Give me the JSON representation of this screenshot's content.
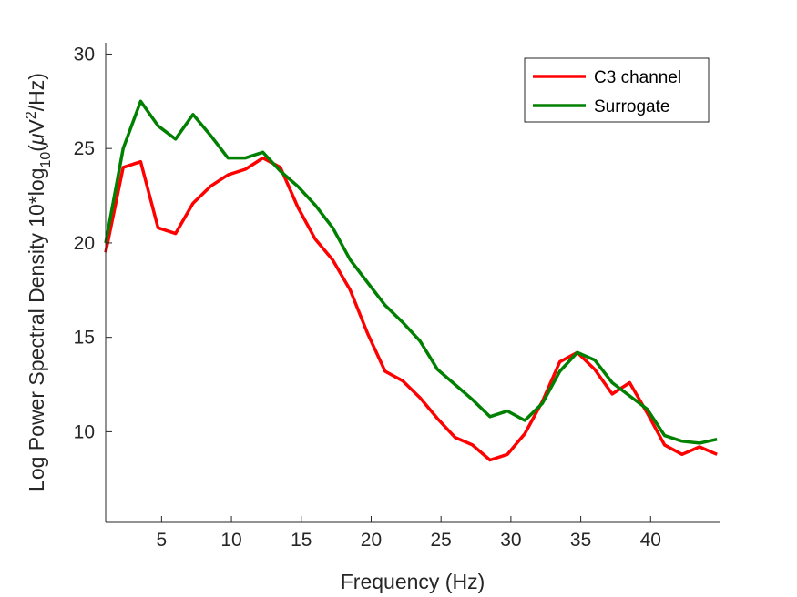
{
  "chart_data": {
    "type": "line",
    "xlabel": "Frequency (Hz)",
    "ylabel": {
      "main": "Log Power Spectral Density 10*log",
      "sub": "10",
      "open": "(",
      "mu": "μ",
      "unit": "V",
      "sup": "2",
      "tail": "/Hz)"
    },
    "xlim": [
      1,
      45
    ],
    "ylim": [
      5.2,
      30.6
    ],
    "xticks": [
      5,
      10,
      15,
      20,
      25,
      30,
      35,
      40
    ],
    "yticks": [
      10,
      15,
      20,
      25,
      30
    ],
    "grid": false,
    "legend_position": "top-right",
    "series": [
      {
        "name": "C3 channel",
        "color": "#ff0000",
        "x": [
          1,
          2.25,
          3.5,
          4.75,
          6,
          7.25,
          8.5,
          9.75,
          11,
          12.25,
          13.5,
          14.75,
          16,
          17.25,
          18.5,
          19.75,
          21,
          22.25,
          23.5,
          24.75,
          26,
          27.25,
          28.5,
          29.75,
          31,
          32.25,
          33.5,
          34.75,
          36,
          37.25,
          38.5,
          39.75,
          41,
          42.25,
          43.5,
          44.75
        ],
        "y": [
          19.5,
          24.0,
          24.3,
          20.8,
          20.5,
          22.1,
          23.0,
          23.6,
          23.9,
          24.5,
          24.0,
          21.9,
          20.2,
          19.1,
          17.5,
          15.2,
          13.2,
          12.7,
          11.8,
          10.7,
          9.7,
          9.3,
          8.5,
          8.8,
          9.9,
          11.6,
          13.7,
          14.2,
          13.3,
          12.0,
          12.6,
          11.0,
          9.3,
          8.8,
          9.2,
          8.8
        ]
      },
      {
        "name": "Surrogate",
        "color": "#008000",
        "x": [
          1,
          2.25,
          3.5,
          4.75,
          6,
          7.25,
          8.5,
          9.75,
          11,
          12.25,
          13.5,
          14.75,
          16,
          17.25,
          18.5,
          19.75,
          21,
          22.25,
          23.5,
          24.75,
          26,
          27.25,
          28.5,
          29.75,
          31,
          32.25,
          33.5,
          34.75,
          36,
          37.25,
          38.5,
          39.75,
          41,
          42.25,
          43.5,
          44.75
        ],
        "y": [
          20.0,
          25.0,
          27.5,
          26.2,
          25.5,
          26.8,
          25.7,
          24.5,
          24.5,
          24.8,
          23.8,
          23.0,
          22.0,
          20.8,
          19.1,
          17.9,
          16.7,
          15.8,
          14.8,
          13.3,
          12.5,
          11.7,
          10.8,
          11.1,
          10.6,
          11.5,
          13.2,
          14.2,
          13.8,
          12.6,
          11.9,
          11.2,
          9.8,
          9.5,
          9.4,
          9.6
        ]
      }
    ]
  }
}
